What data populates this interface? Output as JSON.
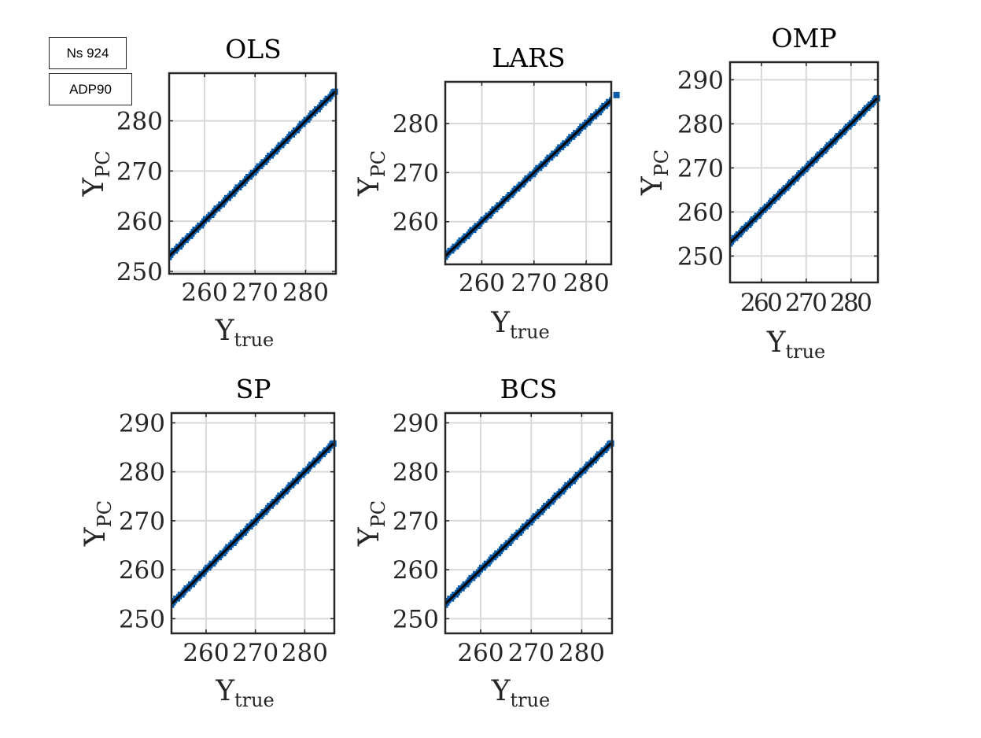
{
  "annotations": {
    "ns": "Ns 924",
    "adp": "ADP90"
  },
  "colors": {
    "marker": "#0a5ba8",
    "fit_line": "#000000",
    "grid": "#d9d9d9",
    "axes": "#262626"
  },
  "chart_data": [
    {
      "type": "scatter",
      "title": "OLS",
      "xlabel": "Y_true",
      "ylabel": "Y_PC",
      "xlim": [
        253,
        286
      ],
      "ylim": [
        249.5,
        289.5
      ],
      "xticks": [
        "260",
        "270",
        "280"
      ],
      "yticks": [
        "250",
        "260",
        "270",
        "280"
      ],
      "points_range": [
        253,
        285.8
      ],
      "fit_line": [
        [
          253,
          253
        ],
        [
          285.8,
          285.8
        ]
      ],
      "grid": true
    },
    {
      "type": "scatter",
      "title": "LARS",
      "xlabel": "Y_true",
      "ylabel": "Y_PC",
      "xlim": [
        253,
        284.8
      ],
      "ylim": [
        251.3,
        288.5
      ],
      "xticks": [
        "260",
        "270",
        "280"
      ],
      "yticks": [
        "260",
        "270",
        "280"
      ],
      "points_range": [
        253,
        285.8
      ],
      "fit_line": [
        [
          253,
          253
        ],
        [
          285.8,
          285.8
        ]
      ],
      "grid": true
    },
    {
      "type": "scatter",
      "title": "OMP",
      "xlabel": "Y_true",
      "ylabel": "Y_PC",
      "xlim": [
        253,
        286
      ],
      "ylim": [
        244,
        294
      ],
      "xticks": [
        "260",
        "270",
        "280"
      ],
      "yticks": [
        "250",
        "260",
        "270",
        "280",
        "290"
      ],
      "points_range": [
        253,
        285.8
      ],
      "fit_line": [
        [
          253,
          253
        ],
        [
          285.8,
          285.8
        ]
      ],
      "grid": true
    },
    {
      "type": "scatter",
      "title": "SP",
      "xlabel": "Y_true",
      "ylabel": "Y_PC",
      "xlim": [
        253,
        286
      ],
      "ylim": [
        247,
        292
      ],
      "xticks": [
        "260",
        "270",
        "280"
      ],
      "yticks": [
        "250",
        "260",
        "270",
        "280",
        "290"
      ],
      "points_range": [
        253,
        285.8
      ],
      "fit_line": [
        [
          253,
          253
        ],
        [
          285.8,
          285.8
        ]
      ],
      "grid": true
    },
    {
      "type": "scatter",
      "title": "BCS",
      "xlabel": "Y_true",
      "ylabel": "Y_PC",
      "xlim": [
        253,
        286
      ],
      "ylim": [
        247,
        292
      ],
      "xticks": [
        "260",
        "270",
        "280"
      ],
      "yticks": [
        "250",
        "260",
        "270",
        "280",
        "290"
      ],
      "points_range": [
        253,
        285.8
      ],
      "fit_line": [
        [
          253,
          253
        ],
        [
          285.8,
          285.8
        ]
      ],
      "grid": true
    }
  ]
}
